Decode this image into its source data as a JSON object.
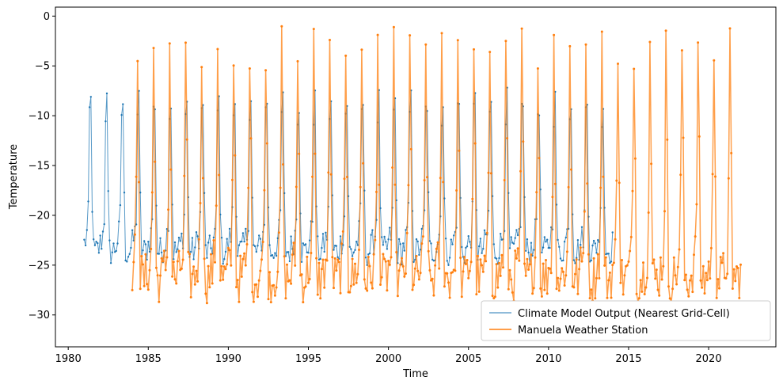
{
  "chart_data": {
    "type": "line",
    "title": "",
    "xlabel": "Time",
    "ylabel": "Temperature",
    "xlim": [
      1979.2,
      2024.2
    ],
    "ylim": [
      -33.2,
      0.9
    ],
    "x_ticks": [
      1980,
      1985,
      1990,
      1995,
      2000,
      2005,
      2010,
      2015,
      2020
    ],
    "y_ticks": [
      0,
      -5,
      -10,
      -15,
      -20,
      -25,
      -30
    ],
    "grid": false,
    "legend_location": "lower right",
    "series": [
      {
        "name": "Climate Model Output (Nearest Grid-Cell)",
        "color": "#1f77b4",
        "line_width": 1,
        "marker_size": 1.2,
        "start_year": 1981.0,
        "end_year": 2014.0,
        "summer_peak_c": -3.0,
        "winter_min_c": -25.0,
        "winter_plateau_c": -21.5,
        "samples_per_year": 12
      },
      {
        "name": "Manuela Weather Station",
        "color": "#ff7f0e",
        "line_width": 1.5,
        "marker_size": 1.5,
        "start_year": 1984.0,
        "end_year": 2022.0,
        "summer_peak_c": -2.5,
        "winter_min_c": -28.0,
        "winter_plateau_c": -24.0,
        "samples_per_year": 12
      }
    ]
  }
}
